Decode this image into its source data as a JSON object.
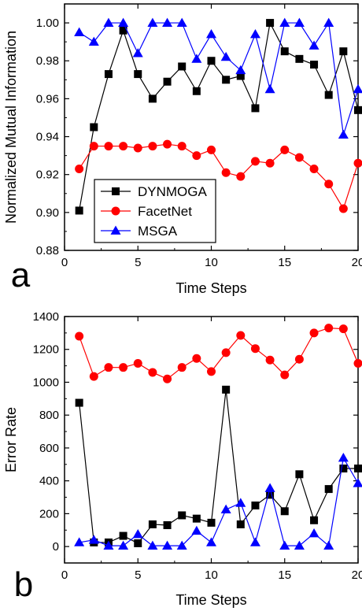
{
  "chart_data": [
    {
      "panel_label": "a",
      "type": "line",
      "xlabel": "Time Steps",
      "ylabel": "Normalized Mutual Information",
      "xlim": [
        0,
        20
      ],
      "ylim": [
        0.88,
        1.01
      ],
      "x_ticks": [
        0,
        5,
        10,
        15,
        20
      ],
      "x_tick_labels": [
        "0",
        "5",
        "10",
        "15",
        "20"
      ],
      "y_ticks": [
        0.88,
        0.9,
        0.92,
        0.94,
        0.96,
        0.98,
        1.0
      ],
      "y_tick_labels": [
        "0.88",
        "0.90",
        "0.92",
        "0.94",
        "0.96",
        "0.98",
        "1.00"
      ],
      "x": [
        1,
        2,
        3,
        4,
        5,
        6,
        7,
        8,
        9,
        10,
        11,
        12,
        13,
        14,
        15,
        16,
        17,
        18,
        19,
        20
      ],
      "grid": false,
      "legend_position": "bottom-left",
      "series": [
        {
          "name": "DYNMOGA",
          "color": "#000000",
          "marker": "square",
          "values": [
            0.901,
            0.945,
            0.973,
            0.996,
            0.973,
            0.96,
            0.969,
            0.977,
            0.964,
            0.98,
            0.97,
            0.972,
            0.955,
            1.0,
            0.985,
            0.981,
            0.978,
            0.962,
            0.985,
            0.954
          ]
        },
        {
          "name": "FacetNet",
          "color": "#ff0000",
          "marker": "circle",
          "values": [
            0.923,
            0.935,
            0.935,
            0.935,
            0.934,
            0.935,
            0.936,
            0.935,
            0.93,
            0.933,
            0.921,
            0.919,
            0.927,
            0.926,
            0.933,
            0.929,
            0.923,
            0.915,
            0.902,
            0.926
          ]
        },
        {
          "name": "MSGA",
          "color": "#0000ff",
          "marker": "triangle",
          "values": [
            0.995,
            0.99,
            1.0,
            1.0,
            0.984,
            1.0,
            1.0,
            1.0,
            0.981,
            0.994,
            0.982,
            0.975,
            0.994,
            0.965,
            1.0,
            1.0,
            0.988,
            1.0,
            0.941,
            0.965
          ]
        }
      ]
    },
    {
      "panel_label": "b",
      "type": "line",
      "xlabel": "Time Steps",
      "ylabel": "Error Rate",
      "xlim": [
        0,
        20
      ],
      "ylim": [
        -100,
        1400
      ],
      "x_ticks": [
        0,
        5,
        10,
        15,
        20
      ],
      "x_tick_labels": [
        "0",
        "5",
        "10",
        "15",
        "20"
      ],
      "y_ticks": [
        0,
        200,
        400,
        600,
        800,
        1000,
        1200,
        1400
      ],
      "y_tick_labels": [
        "0",
        "200",
        "400",
        "600",
        "800",
        "1000",
        "1200",
        "1400"
      ],
      "x": [
        1,
        2,
        3,
        4,
        5,
        6,
        7,
        8,
        9,
        10,
        11,
        12,
        13,
        14,
        15,
        16,
        17,
        18,
        19,
        20
      ],
      "grid": false,
      "series": [
        {
          "name": "DYNMOGA",
          "color": "#000000",
          "marker": "square",
          "values": [
            875,
            25,
            25,
            65,
            20,
            135,
            130,
            190,
            170,
            145,
            955,
            135,
            250,
            315,
            215,
            440,
            160,
            350,
            475,
            475
          ]
        },
        {
          "name": "FacetNet",
          "color": "#ff0000",
          "marker": "circle",
          "values": [
            1280,
            1035,
            1090,
            1090,
            1115,
            1060,
            1020,
            1090,
            1145,
            1065,
            1180,
            1285,
            1205,
            1135,
            1045,
            1140,
            1300,
            1330,
            1325,
            1115
          ]
        },
        {
          "name": "MSGA",
          "color": "#0000ff",
          "marker": "triangle",
          "values": [
            25,
            40,
            5,
            5,
            75,
            5,
            5,
            5,
            95,
            25,
            225,
            265,
            25,
            355,
            5,
            5,
            80,
            5,
            540,
            385
          ]
        }
      ]
    }
  ]
}
